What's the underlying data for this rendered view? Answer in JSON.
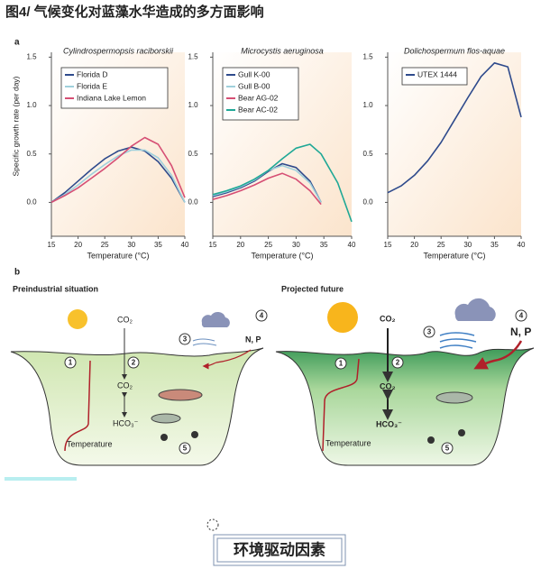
{
  "figure_title": "图4/  气候变化对蓝藻水华造成的多方面影响",
  "panel_a_label": "a",
  "chart_data": [
    {
      "type": "line",
      "title": "Cylindrospermopsis raciborskii",
      "y_label": "Specific growth rate (per day)",
      "x_label": "Temperature (°C)",
      "x": [
        15,
        17.5,
        20,
        22.5,
        25,
        27.5,
        30,
        32.5,
        35,
        37.5,
        40
      ],
      "series": [
        {
          "name": "Florida D",
          "color": "#2e4a8c",
          "values": [
            0,
            0.1,
            0.22,
            0.34,
            0.45,
            0.53,
            0.57,
            0.53,
            0.42,
            0.25,
            0
          ]
        },
        {
          "name": "Florida E",
          "color": "#9fd0dc",
          "values": [
            0,
            0.08,
            0.18,
            0.29,
            0.39,
            0.48,
            0.54,
            0.54,
            0.46,
            0.28,
            0
          ]
        },
        {
          "name": "Indiana Lake Lemon",
          "color": "#d64f74",
          "values": [
            0,
            0.07,
            0.15,
            0.25,
            0.35,
            0.46,
            0.58,
            0.67,
            0.6,
            0.38,
            0.05
          ]
        }
      ],
      "xlim": [
        15,
        40
      ],
      "xticks": [
        15,
        20,
        25,
        30,
        35,
        40
      ],
      "ylim": [
        -0.35,
        1.55
      ],
      "yticks": [
        {
          "value": 0,
          "label": "0.0"
        },
        0.5,
        {
          "value": 1,
          "label": "1.0"
        },
        1.5
      ]
    },
    {
      "type": "line",
      "title": "Microcystis aeruginosa",
      "x_label": "Temperature (°C)",
      "x": [
        15,
        17.5,
        20,
        22.5,
        25,
        27.5,
        30,
        32.5,
        34.5,
        37.5,
        40
      ],
      "series": [
        {
          "name": "Gull K-00",
          "color": "#2e4a8c",
          "values": [
            0.06,
            0.1,
            0.15,
            0.22,
            0.32,
            0.4,
            0.36,
            0.22,
            0,
            null,
            null
          ]
        },
        {
          "name": "Gull B-00",
          "color": "#9fd0dc",
          "values": [
            0.07,
            0.11,
            0.16,
            0.23,
            0.33,
            0.38,
            0.33,
            0.2,
            0,
            null,
            null
          ]
        },
        {
          "name": "Bear AG-02",
          "color": "#d64f74",
          "values": [
            0.03,
            0.07,
            0.12,
            0.18,
            0.25,
            0.3,
            0.24,
            0.12,
            -0.02,
            null,
            null
          ]
        },
        {
          "name": "Bear AC-02",
          "color": "#1fa896",
          "values": [
            0.08,
            0.12,
            0.17,
            0.24,
            0.33,
            0.45,
            0.56,
            0.6,
            0.5,
            0.2,
            -0.2
          ]
        }
      ],
      "xlim": [
        15,
        40
      ],
      "xticks": [
        15,
        20,
        25,
        30,
        35,
        40
      ],
      "ylim": [
        -0.35,
        1.55
      ],
      "yticks": [
        {
          "value": 0,
          "label": "0.0"
        },
        0.5,
        {
          "value": 1,
          "label": "1.0"
        },
        1.5
      ]
    },
    {
      "type": "line",
      "title": "Dolichospermum flos-aquae",
      "x_label": "Temperature (°C)",
      "x": [
        15,
        17.5,
        20,
        22.5,
        25,
        27.5,
        30,
        32.5,
        35,
        37.5,
        40
      ],
      "series": [
        {
          "name": "UTEX 1444",
          "color": "#2e4a8c",
          "values": [
            0.1,
            0.17,
            0.28,
            0.43,
            0.62,
            0.85,
            1.08,
            1.3,
            1.44,
            1.4,
            0.88
          ]
        }
      ],
      "xlim": [
        15,
        40
      ],
      "xticks": [
        15,
        20,
        25,
        30,
        35,
        40
      ],
      "ylim": [
        -0.35,
        1.55
      ],
      "yticks": [
        {
          "value": 0,
          "label": "0.0"
        },
        0.5,
        {
          "value": 1,
          "label": "1.0"
        },
        1.5
      ]
    }
  ],
  "panel_b": {
    "label": "b",
    "preindustrial": {
      "title": "Preindustrial situation",
      "co2_air": "CO₂",
      "co2_water": "CO₂",
      "hco3": "HCO₃⁻",
      "temperature": "Temperature",
      "nutrients": "N, P",
      "markers": [
        "1",
        "2",
        "3",
        "4",
        "5"
      ]
    },
    "future": {
      "title": "Projected future",
      "co2_air": "CO₂",
      "co2_water": "CO₂",
      "hco3": "HCO₃⁻",
      "temperature": "Temperature",
      "nutrients": "N, P",
      "markers": [
        "1",
        "2",
        "3",
        "4",
        "5"
      ]
    }
  },
  "footer": "环境驱动因素"
}
